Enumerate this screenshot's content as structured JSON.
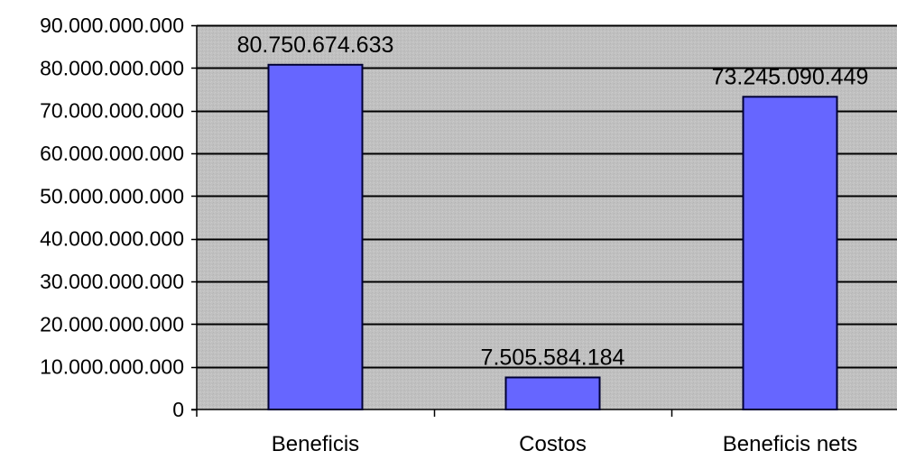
{
  "chart_data": {
    "type": "bar",
    "categories": [
      "Beneficis",
      "Costos",
      "Beneficis nets"
    ],
    "values": [
      80750674633,
      7505584184,
      73245090449
    ],
    "data_labels": [
      "80.750.674.633",
      "7.505.584.184",
      "73.245.090.449"
    ],
    "ylim": [
      0,
      90000000000
    ],
    "yticks": [
      0,
      10000000000,
      20000000000,
      30000000000,
      40000000000,
      50000000000,
      60000000000,
      70000000000,
      80000000000,
      90000000000
    ],
    "ytick_labels": [
      "0",
      "10.000.000.000",
      "20.000.000.000",
      "30.000.000.000",
      "40.000.000.000",
      "50.000.000.000",
      "60.000.000.000",
      "70.000.000.000",
      "80.000.000.000",
      "90.000.000.000"
    ],
    "grid": true,
    "legend": "none",
    "colors": {
      "bar_fill": "#6666ff",
      "bar_stroke": "#000033",
      "plot_background": "#c0c0c0",
      "gridline": "#000000"
    }
  }
}
